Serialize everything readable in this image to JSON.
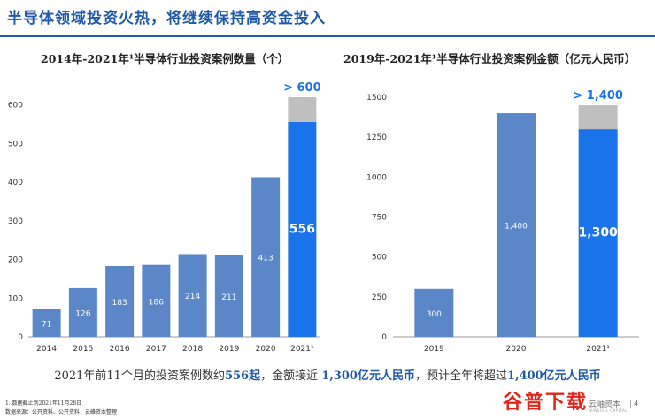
{
  "page": {
    "title": "半导体领域投资火热，将继续保持高资金投入",
    "summary": {
      "p1": "2021年前11个月的投资案例数约",
      "h1": "556起",
      "p2": "，金额接近 ",
      "h2": "1,300亿元人民币",
      "p3": "，预计全年将超过",
      "h3": "1,400亿元人民币"
    },
    "footnote1": "1. 数据截止到2021年11月28日",
    "footnote2": "数据来源：公开资料、公开资料，云峰资本整理",
    "watermark": "谷普下载",
    "logo_text": "云岫资本",
    "logo_sub": "WINSOUL CAPITAL",
    "page_number": "4"
  },
  "colors": {
    "bar": "#5b87c8",
    "highlight": "#1a73e8",
    "projection": "#bfbfbf",
    "accent": "#1f5aa8"
  },
  "chart_data": [
    {
      "type": "bar",
      "title": "2014年-2021年¹半导体行业投资案例数量（个）",
      "categories": [
        "2014",
        "2015",
        "2016",
        "2017",
        "2018",
        "2019",
        "2020",
        "2021¹"
      ],
      "values": [
        71,
        126,
        183,
        186,
        214,
        211,
        413,
        556
      ],
      "data_labels": [
        "71",
        "126",
        "183",
        "186",
        "214",
        "211",
        "413",
        "556"
      ],
      "projection": {
        "value": 620,
        "label": "> 600"
      },
      "highlight_index": 7,
      "yticks": [
        0,
        100,
        200,
        300,
        400,
        500,
        600
      ],
      "ylim": [
        0,
        620
      ],
      "grid": false
    },
    {
      "type": "bar",
      "title": "2019年-2021年¹半导体行业投资案例金额（亿元人民币）",
      "categories": [
        "2019",
        "2020",
        "2021¹"
      ],
      "values": [
        300,
        1400,
        1300
      ],
      "data_labels": [
        "300",
        "1,400",
        "1,300"
      ],
      "projection": {
        "value": 1450,
        "label": "> 1,400"
      },
      "highlight_index": 2,
      "yticks": [
        0,
        250,
        500,
        750,
        1000,
        1250,
        1500
      ],
      "ylim": [
        0,
        1500
      ],
      "grid": false
    }
  ]
}
